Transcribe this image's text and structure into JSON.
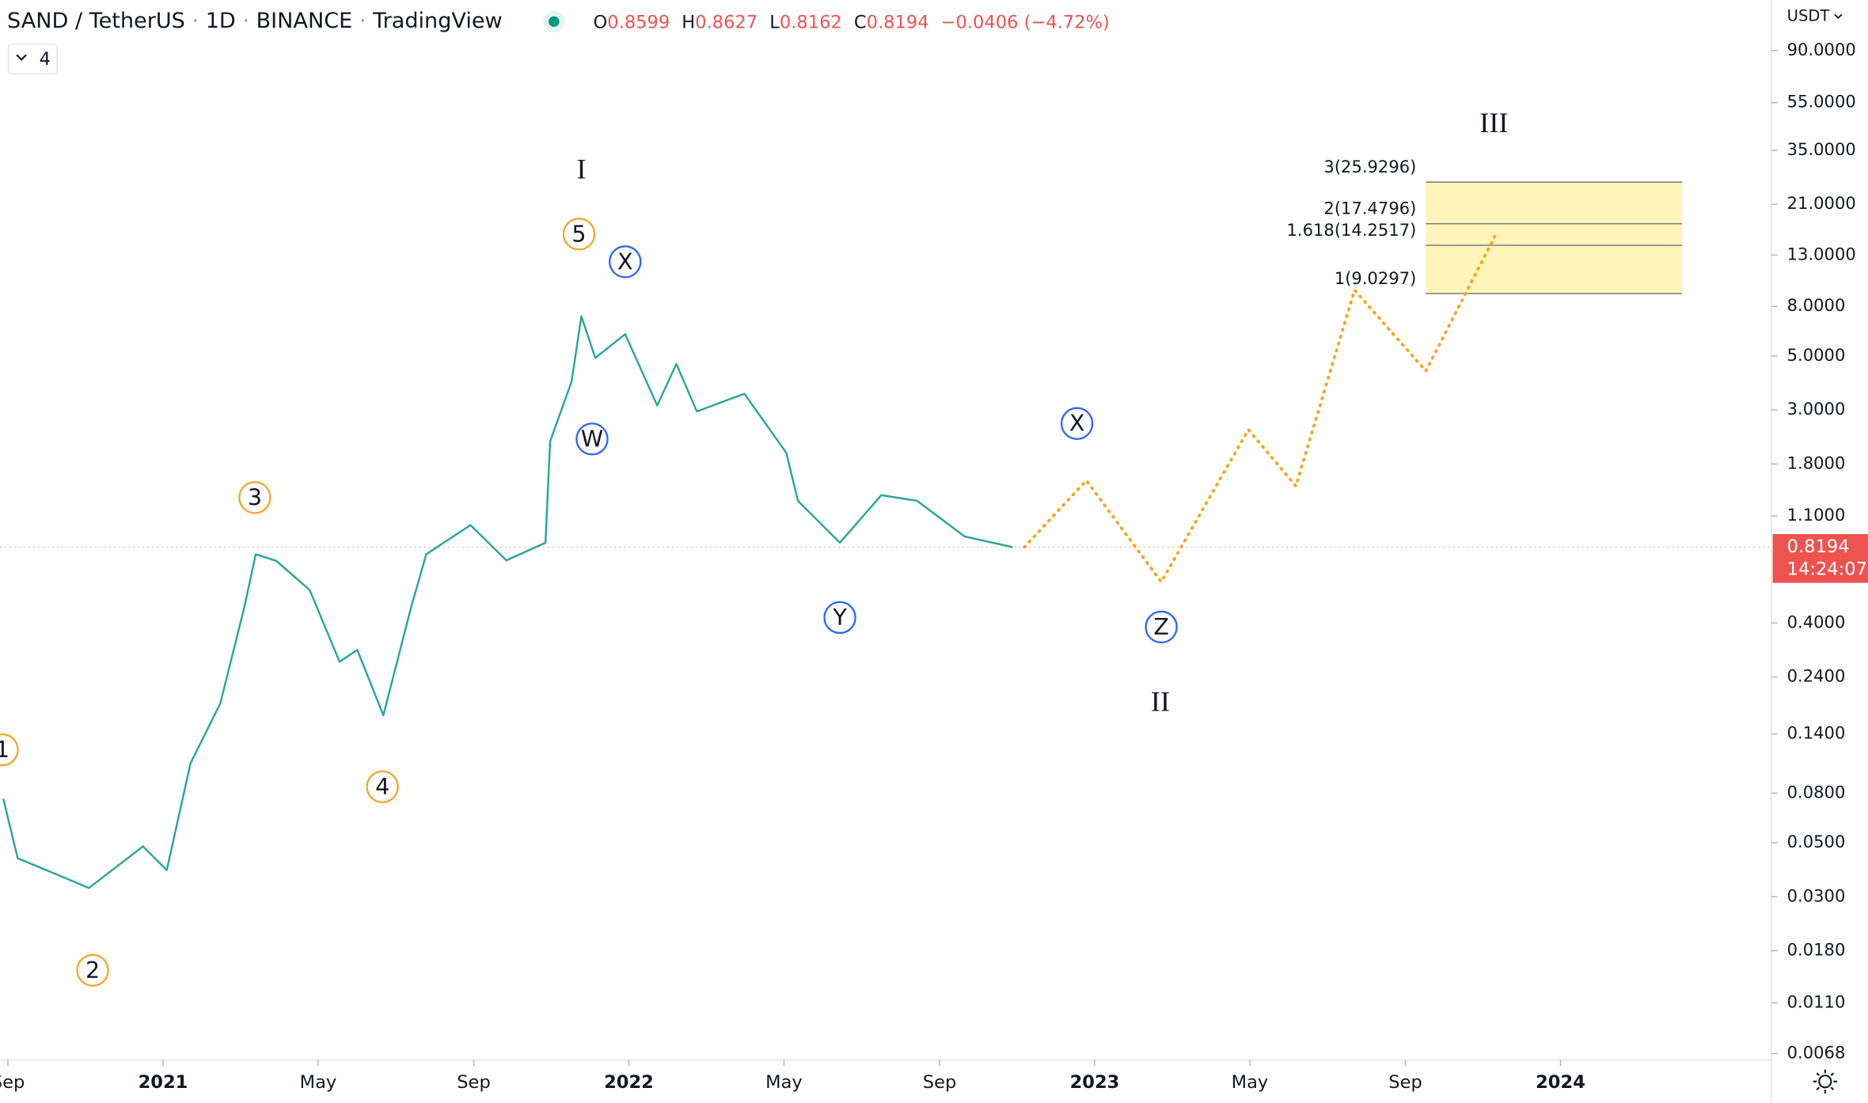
{
  "chart_data": {
    "type": "line",
    "symbol": "SAND / TetherUS",
    "interval": "1D",
    "exchange": "BINANCE",
    "source": "TradingView",
    "ohlc": [
      {
        "label": "O",
        "value": 0.8599
      },
      {
        "label": "H",
        "value": 0.8627
      },
      {
        "label": "L",
        "value": 0.8162
      },
      {
        "label": "C",
        "value": 0.8194
      }
    ],
    "change": "−0.0406 (−4.72%)",
    "indicators": "4",
    "currency": "USDT",
    "countdown": "14:24:07",
    "log_scale": true,
    "grid": false,
    "color": "#26a69a",
    "x": [
      2020.657,
      2020.688,
      2020.841,
      2020.957,
      2021.008,
      2021.059,
      2021.123,
      2021.174,
      2021.199,
      2021.243,
      2021.315,
      2021.379,
      2021.417,
      2021.473,
      2021.532,
      2021.565,
      2021.66,
      2021.737,
      2021.821,
      2021.831,
      2021.877,
      2021.898,
      2021.928,
      2021.992,
      2022.061,
      2022.102,
      2022.146,
      2022.248,
      2022.338,
      2022.363,
      2022.453,
      2022.542,
      2022.619,
      2022.721,
      2022.824
    ],
    "values": [
      0.0759,
      0.0432,
      0.0326,
      0.0483,
      0.0386,
      0.106,
      0.187,
      0.46,
      0.766,
      0.72,
      0.546,
      0.277,
      0.31,
      0.167,
      0.46,
      0.766,
      1.01,
      0.723,
      0.855,
      2.23,
      3.92,
      7.28,
      4.91,
      6.15,
      3.13,
      4.64,
      2.96,
      3.5,
      2.0,
      1.27,
      0.855,
      1.34,
      1.27,
      0.906,
      0.8194
    ],
    "projection": {
      "color": "#f5a623",
      "x": [
        2022.849,
        2022.982,
        2023.143,
        2023.33,
        2023.432,
        2023.558,
        2023.711,
        2023.859
      ],
      "values": [
        0.8194,
        1.54,
        0.59,
        2.49,
        1.46,
        9.33,
        4.34,
        15.5
      ]
    },
    "fib_color": "#fff5b8",
    "fib_x": [
      2023.711,
      2024.261
    ],
    "fib_levels": [
      {
        "value": 9.0297,
        "label": "1(9.0297)"
      },
      {
        "value": 14.2517,
        "label": "1.618(14.2517)"
      },
      {
        "value": 17.4796,
        "label": "2(17.4796)"
      },
      {
        "value": 25.9296,
        "label": "3(25.9296)"
      }
    ],
    "annotations": [
      {
        "text": "1",
        "style": "circle",
        "color": "#f5a623",
        "x": 2020.655,
        "y": 0.1205
      },
      {
        "text": "2",
        "style": "circle",
        "color": "#f5a623",
        "x": 2020.849,
        "y": 0.01496
      },
      {
        "text": "3",
        "style": "circle",
        "color": "#f5a623",
        "x": 2021.197,
        "y": 1.31
      },
      {
        "text": "4",
        "style": "circle",
        "color": "#f5a623",
        "x": 2021.471,
        "y": 0.0849
      },
      {
        "text": "5",
        "style": "circle",
        "color": "#f5a623",
        "x": 2021.893,
        "y": 15.85
      },
      {
        "text": "I",
        "style": "roman",
        "color": "#f5a623",
        "x": 2021.898,
        "y": 28.5
      },
      {
        "text": "W",
        "style": "circle",
        "color": "#2962ff",
        "x": 2021.921,
        "y": 2.28
      },
      {
        "text": "X",
        "style": "circle",
        "color": "#2962ff",
        "x": 2021.992,
        "y": 12.2
      },
      {
        "text": "Y",
        "style": "circle",
        "color": "#2962ff",
        "x": 2022.453,
        "y": 0.421
      },
      {
        "text": "X",
        "style": "circle",
        "color": "#2962ff",
        "x": 2022.962,
        "y": 2.64
      },
      {
        "text": "Z",
        "style": "circle",
        "color": "#2962ff",
        "x": 2023.143,
        "y": 0.385
      },
      {
        "text": "II",
        "style": "roman",
        "color": "#f5a623",
        "x": 2023.141,
        "y": 0.185
      },
      {
        "text": "III",
        "style": "roman",
        "color": "#f5a623",
        "x": 2023.857,
        "y": 44.3
      }
    ],
    "xlim": [
      2020.65,
      2024.453
    ],
    "xticks": [
      {
        "value": 2020.667,
        "label": "Sep"
      },
      2021,
      {
        "value": 2021.333,
        "label": "May"
      },
      {
        "value": 2021.667,
        "label": "Sep"
      },
      2022,
      {
        "value": 2022.333,
        "label": "May"
      },
      {
        "value": 2022.667,
        "label": "Sep"
      },
      2023,
      {
        "value": 2023.333,
        "label": "May"
      },
      {
        "value": 2023.667,
        "label": "Sep"
      },
      2024
    ],
    "ylim": [
      0.0064,
      145
    ],
    "yticks": [
      {
        "value": 90,
        "label": "90.0000"
      },
      {
        "value": 55,
        "label": "55.0000"
      },
      {
        "value": 35,
        "label": "35.0000"
      },
      {
        "value": 21,
        "label": "21.0000"
      },
      {
        "value": 13,
        "label": "13.0000"
      },
      {
        "value": 8,
        "label": "8.0000"
      },
      {
        "value": 5,
        "label": "5.0000"
      },
      {
        "value": 3,
        "label": "3.0000"
      },
      {
        "value": 1.8,
        "label": "1.8000"
      },
      {
        "value": 1.1,
        "label": "1.1000"
      },
      {
        "value": 0.4,
        "label": "0.4000"
      },
      {
        "value": 0.24,
        "label": "0.2400"
      },
      {
        "value": 0.14,
        "label": "0.1400"
      },
      {
        "value": 0.08,
        "label": "0.0800"
      },
      {
        "value": 0.05,
        "label": "0.0500"
      },
      {
        "value": 0.03,
        "label": "0.0300"
      },
      {
        "value": 0.018,
        "label": "0.0180"
      },
      {
        "value": 0.011,
        "label": "0.0110"
      },
      {
        "value": 0.0068,
        "label": "0.0068"
      }
    ]
  }
}
